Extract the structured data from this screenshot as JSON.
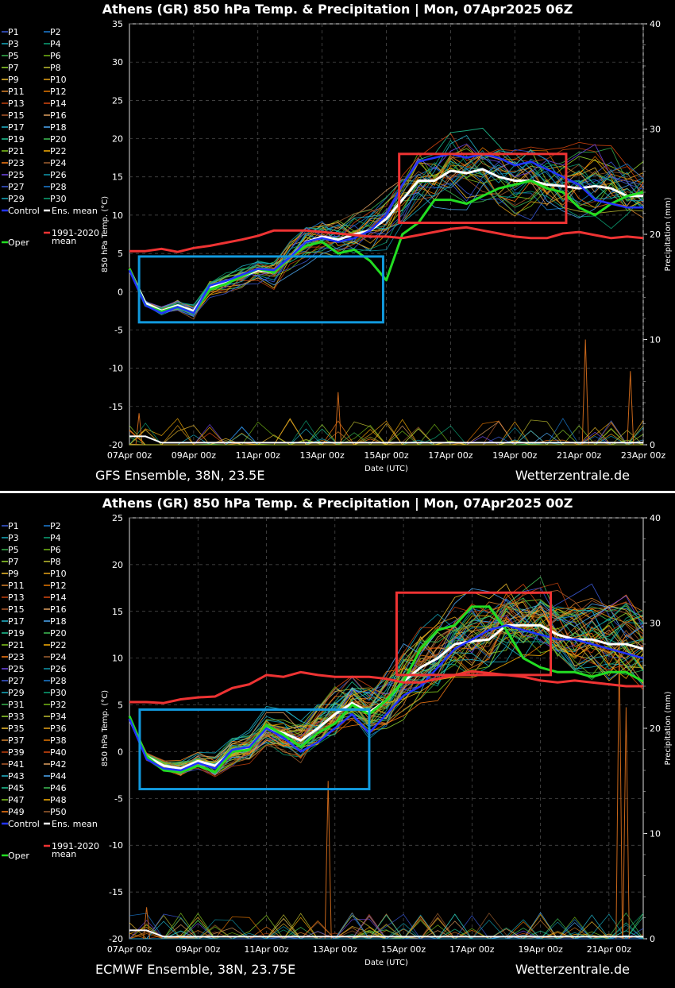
{
  "charts": [
    {
      "title": "Athens  (GR)  850 hPa Temp. & Precipitation | Mon, 07Apr2025 06Z",
      "source": "GFS Ensemble, 38N, 23.5E",
      "site": "Wetterzentrale.de",
      "ylabel": "850 hPa Temp. (°C)",
      "y2label": "Precipitation (mm)",
      "xlabel": "Date (UTC)",
      "yticks": [
        "35",
        "30",
        "25",
        "20",
        "15",
        "10",
        "5",
        "0",
        "-5",
        "-10",
        "-15",
        "-20"
      ],
      "y2ticks": [
        "40",
        "30",
        "20",
        "10",
        "0"
      ],
      "xticks": [
        "07Apr 00z",
        "09Apr 00z",
        "11Apr 00z",
        "13Apr 00z",
        "15Apr 00z",
        "17Apr 00z",
        "19Apr 00z",
        "21Apr 00z",
        "23Apr 00z"
      ],
      "legend": [
        "P1",
        "P2",
        "P3",
        "P4",
        "P5",
        "P6",
        "P7",
        "P8",
        "P9",
        "P10",
        "P11",
        "P12",
        "P13",
        "P14",
        "P15",
        "P16",
        "P17",
        "P18",
        "P19",
        "P20",
        "P21",
        "P22",
        "P23",
        "P24",
        "P25",
        "P26",
        "P27",
        "P28",
        "P29",
        "P30"
      ],
      "legend_extra": [
        "Control",
        "Ens. mean",
        "1991-2020",
        "mean",
        "Oper"
      ]
    },
    {
      "title": "Athens  (GR)  850 hPa Temp. & Precipitation | Mon, 07Apr2025 00Z",
      "source": "ECMWF Ensemble, 38N, 23.75E",
      "site": "Wetterzentrale.de",
      "ylabel": "850 hPa Temp. (°C)",
      "y2label": "Precipitation (mm)",
      "xlabel": "Date (UTC)",
      "yticks": [
        "25",
        "20",
        "15",
        "10",
        "5",
        "0",
        "-5",
        "-10",
        "-15",
        "-20"
      ],
      "y2ticks": [
        "40",
        "30",
        "20",
        "10",
        "0"
      ],
      "xticks": [
        "07Apr 00z",
        "09Apr 00z",
        "11Apr 00z",
        "13Apr 00z",
        "15Apr 00z",
        "17Apr 00z",
        "19Apr 00z",
        "21Apr 00z"
      ],
      "legend": [
        "P1",
        "P2",
        "P3",
        "P4",
        "P5",
        "P6",
        "P7",
        "P8",
        "P9",
        "P10",
        "P11",
        "P12",
        "P13",
        "P14",
        "P15",
        "P16",
        "P17",
        "P18",
        "P19",
        "P20",
        "P21",
        "P22",
        "P23",
        "P24",
        "P25",
        "P26",
        "P27",
        "P28",
        "P29",
        "P30",
        "P31",
        "P32",
        "P33",
        "P34",
        "P35",
        "P36",
        "P37",
        "P38",
        "P39",
        "P40",
        "P41",
        "P42",
        "P43",
        "P44",
        "P45",
        "P46",
        "P47",
        "P48",
        "P49",
        "P50"
      ],
      "legend_extra": [
        "Control",
        "Ens. mean",
        "1991-2020",
        "mean",
        "Oper"
      ]
    }
  ],
  "chart_data": [
    {
      "type": "line",
      "title": "Athens  (GR)  850 hPa Temp. & Precipitation | Mon, 07Apr2025 06Z",
      "xlabel": "Date (UTC)",
      "ylabel": "850 hPa Temp. (°C)",
      "y2label": "Precipitation (mm)",
      "ylim": [
        -20,
        35
      ],
      "y2lim": [
        0,
        40
      ],
      "x_days": [
        0,
        0.5,
        1,
        1.5,
        2,
        2.5,
        3,
        3.5,
        4,
        4.5,
        5,
        5.5,
        6,
        6.5,
        7,
        7.5,
        8,
        8.5,
        9,
        9.5,
        10,
        10.5,
        11,
        11.5,
        12,
        12.5,
        13,
        13.5,
        14,
        14.5,
        15,
        15.5,
        16
      ],
      "series": [
        {
          "name": "Ens. mean",
          "color": "#ffffff",
          "values": [
            3,
            -1.5,
            -2.5,
            -1.8,
            -2.5,
            0.5,
            1.2,
            2,
            2.8,
            2.5,
            4.5,
            6.5,
            7.2,
            6.8,
            7.5,
            8,
            9.5,
            12,
            14.5,
            14.5,
            15.8,
            15.5,
            16,
            15,
            14.5,
            14.5,
            14,
            13.8,
            13.5,
            13.8,
            13.5,
            12.5,
            12.5
          ]
        },
        {
          "name": "Oper",
          "color": "#22dd22",
          "values": [
            3,
            -1.8,
            -2.6,
            -2,
            -2.8,
            0.3,
            1,
            2,
            3,
            2.5,
            4.5,
            6,
            6.5,
            5,
            5.5,
            4,
            1.5,
            7.5,
            9,
            12,
            12,
            11.5,
            12.5,
            13.5,
            14,
            14.5,
            13.5,
            13,
            11,
            10,
            11.5,
            12.5,
            13
          ]
        },
        {
          "name": "Control",
          "color": "#2233ff",
          "values": [
            2.8,
            -1.8,
            -2.8,
            -2,
            -2.8,
            0.8,
            1.4,
            2.2,
            3,
            2.8,
            4.5,
            6.5,
            7,
            6.5,
            7,
            8,
            10,
            14,
            17,
            17.5,
            18,
            17.5,
            18,
            17.5,
            16.5,
            17,
            16,
            15,
            14,
            12,
            11.5,
            11,
            11
          ]
        },
        {
          "name": "1991-2020 mean",
          "color": "#ee3333",
          "values": [
            5.3,
            5.3,
            5.6,
            5.2,
            5.7,
            6,
            6.4,
            6.8,
            7.3,
            8,
            8,
            8,
            7.8,
            7.6,
            7.4,
            7.2,
            7.2,
            7,
            7.4,
            7.8,
            8.2,
            8.4,
            8,
            7.6,
            7.2,
            7,
            7,
            7.6,
            7.8,
            7.4,
            7,
            7.2,
            7
          ]
        }
      ],
      "precip_spikes": [
        {
          "x_days": 0.3,
          "mm": 3
        },
        {
          "x_days": 6.5,
          "mm": 5
        },
        {
          "x_days": 14.2,
          "mm": 10
        },
        {
          "x_days": 15.6,
          "mm": 7
        }
      ],
      "boxes": [
        {
          "color": "#1199dd",
          "x": [
            0.3,
            7.9
          ],
          "y": [
            -4,
            4.6
          ]
        },
        {
          "color": "#ee3333",
          "x": [
            8.4,
            13.6
          ],
          "y": [
            9,
            18
          ]
        }
      ]
    },
    {
      "type": "line",
      "title": "Athens  (GR)  850 hPa Temp. & Precipitation | Mon, 07Apr2025 00Z",
      "xlabel": "Date (UTC)",
      "ylabel": "850 hPa Temp. (°C)",
      "y2label": "Precipitation (mm)",
      "ylim": [
        -20,
        25
      ],
      "y2lim": [
        0,
        40
      ],
      "x_days": [
        0,
        0.5,
        1,
        1.5,
        2,
        2.5,
        3,
        3.5,
        4,
        4.5,
        5,
        5.5,
        6,
        6.5,
        7,
        7.5,
        8,
        8.5,
        9,
        9.5,
        10,
        10.5,
        11,
        11.5,
        12,
        12.5,
        13,
        13.5,
        14,
        14.5,
        15
      ],
      "series": [
        {
          "name": "Ens. mean",
          "color": "#ffffff",
          "values": [
            3.5,
            -0.5,
            -1.5,
            -1.8,
            -1,
            -1.5,
            0,
            0.5,
            2.5,
            2,
            1.2,
            2.5,
            4,
            5.2,
            4.2,
            5.5,
            7.5,
            9,
            10,
            11.5,
            11.8,
            12,
            13.5,
            13.5,
            13.5,
            12.5,
            12,
            12,
            11.5,
            11.5,
            11
          ]
        },
        {
          "name": "Oper",
          "color": "#22dd22",
          "values": [
            3.8,
            -0.5,
            -2,
            -2.2,
            -1.5,
            -2.2,
            0,
            0.2,
            2.8,
            1.8,
            0.5,
            2,
            3,
            5,
            4,
            5.5,
            7.5,
            11,
            13,
            13.5,
            15.5,
            15.5,
            13,
            10,
            9,
            8.5,
            8.5,
            8,
            8.5,
            8.5,
            7.5
          ]
        },
        {
          "name": "Control",
          "color": "#2233ff",
          "values": [
            3.5,
            -0.8,
            -1.8,
            -2,
            -1.2,
            -1.8,
            0.2,
            0.5,
            2.5,
            1.5,
            0,
            1,
            2.5,
            4,
            2,
            4,
            6,
            7,
            9,
            11,
            12,
            13,
            13.5,
            13,
            12.5,
            12,
            12,
            11.5,
            11,
            10.5,
            10
          ]
        },
        {
          "name": "1991-2020 mean",
          "color": "#ee3333",
          "values": [
            5.3,
            5.3,
            5.2,
            5.6,
            5.8,
            5.9,
            6.8,
            7.2,
            8.2,
            8,
            8.5,
            8.2,
            8,
            8,
            8,
            7.8,
            7.4,
            7.4,
            7.8,
            8.2,
            8.6,
            8.4,
            8.2,
            8,
            7.6,
            7.4,
            7.6,
            7.4,
            7.2,
            7,
            7
          ]
        }
      ],
      "precip_spikes": [
        {
          "x_days": 5.8,
          "mm": 15
        },
        {
          "x_days": 14.3,
          "mm": 28
        },
        {
          "x_days": 14.5,
          "mm": 22
        },
        {
          "x_days": 0.5,
          "mm": 3
        }
      ],
      "boxes": [
        {
          "color": "#1199dd",
          "x": [
            0.3,
            7
          ],
          "y": [
            -4,
            4.5
          ]
        },
        {
          "color": "#ee3333",
          "x": [
            7.8,
            12.3
          ],
          "y": [
            8.2,
            17
          ]
        }
      ]
    }
  ]
}
